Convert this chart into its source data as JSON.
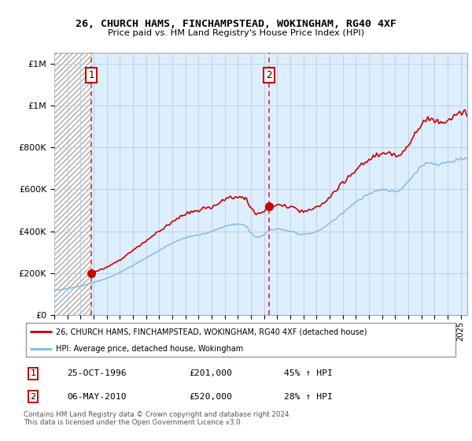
{
  "title": "26, CHURCH HAMS, FINCHAMPSTEAD, WOKINGHAM, RG40 4XF",
  "subtitle": "Price paid vs. HM Land Registry's House Price Index (HPI)",
  "sale1_year": 1996.83,
  "sale1_value": 201000,
  "sale2_year": 2010.37,
  "sale2_value": 520000,
  "legend_line1": "26, CHURCH HAMS, FINCHAMPSTEAD, WOKINGHAM, RG40 4XF (detached house)",
  "legend_line2": "HPI: Average price, detached house, Wokingham",
  "table_row1": [
    "1",
    "25-OCT-1996",
    "£201,000",
    "45% ↑ HPI"
  ],
  "table_row2": [
    "2",
    "06-MAY-2010",
    "£520,000",
    "28% ↑ HPI"
  ],
  "footnote": "Contains HM Land Registry data © Crown copyright and database right 2024.\nThis data is licensed under the Open Government Licence v3.0.",
  "ylim": [
    0,
    1250000
  ],
  "yticks": [
    0,
    200000,
    400000,
    600000,
    800000,
    1000000,
    1200000
  ],
  "xlim_start": 1994.0,
  "xlim_end": 2025.5,
  "hpi_color": "#7ab8e8",
  "price_color": "#cc0000",
  "bg_plot_color": "#ddeeff",
  "grid_color": "#bbccdd",
  "hatch_color": "#c8c8c8"
}
